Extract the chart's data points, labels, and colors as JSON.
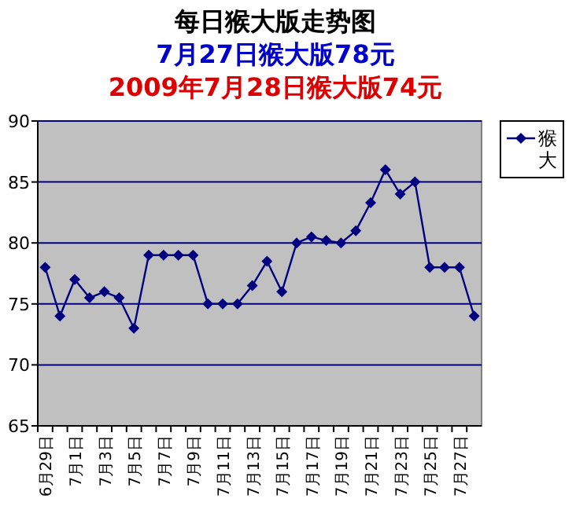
{
  "chart_data": {
    "type": "line",
    "title": "每日猴大版走势图",
    "subtitle": "7月27日猴大版78元",
    "annotations": [
      "2009年7月28日猴大版74元"
    ],
    "categories": [
      "6月29日",
      null,
      "7月1日",
      null,
      "7月3日",
      null,
      "7月5日",
      null,
      "7月7日",
      null,
      "7月9日",
      null,
      "7月11日",
      null,
      "7月13日",
      null,
      "7月15日",
      null,
      "7月17日",
      null,
      "7月19日",
      null,
      "7月21日",
      null,
      "7月23日",
      null,
      "7月25日",
      null,
      "7月27日",
      null
    ],
    "series": [
      {
        "name": "猴大",
        "color": "#000080",
        "values": [
          78,
          74,
          77,
          75.5,
          76,
          75.5,
          73,
          79,
          79,
          79,
          79,
          75,
          75,
          75,
          76.5,
          78.5,
          76,
          80,
          80.5,
          80.2,
          80,
          81,
          83.3,
          86,
          84,
          85,
          78,
          78,
          78,
          74
        ]
      }
    ],
    "ylim": [
      65,
      90
    ],
    "yticks": [
      65,
      70,
      75,
      80,
      85,
      90
    ],
    "grid": "y",
    "legend": "right",
    "marker": "diamond",
    "line_style": "solid"
  }
}
